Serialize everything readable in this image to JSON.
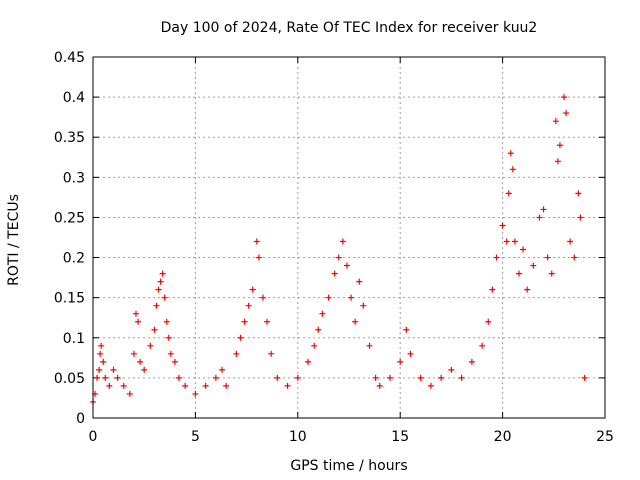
{
  "chart_data": {
    "type": "scatter",
    "title": "Day 100 of 2024, Rate Of TEC Index for receiver kuu2",
    "xlabel": "GPS time / hours",
    "ylabel": "ROTI / TECUs",
    "xlim": [
      0,
      25
    ],
    "ylim": [
      0,
      0.45
    ],
    "xticks": [
      "0",
      "5",
      "10",
      "15",
      "20",
      "25"
    ],
    "yticks": [
      "0",
      "0.05",
      "0.1",
      "0.15",
      "0.2",
      "0.25",
      "0.3",
      "0.35",
      "0.4",
      "0.45"
    ],
    "grid": true,
    "marker": "plus",
    "color": "#ff0000",
    "series": [
      {
        "points": [
          [
            0.0,
            0.02
          ],
          [
            0.1,
            0.03
          ],
          [
            0.2,
            0.05
          ],
          [
            0.3,
            0.06
          ],
          [
            0.35,
            0.08
          ],
          [
            0.4,
            0.09
          ],
          [
            0.5,
            0.07
          ],
          [
            0.6,
            0.05
          ],
          [
            0.8,
            0.04
          ],
          [
            1.0,
            0.06
          ],
          [
            1.2,
            0.05
          ],
          [
            1.5,
            0.04
          ],
          [
            1.8,
            0.03
          ],
          [
            2.0,
            0.08
          ],
          [
            2.1,
            0.13
          ],
          [
            2.2,
            0.12
          ],
          [
            2.3,
            0.07
          ],
          [
            2.5,
            0.06
          ],
          [
            2.8,
            0.09
          ],
          [
            3.0,
            0.11
          ],
          [
            3.1,
            0.14
          ],
          [
            3.2,
            0.16
          ],
          [
            3.3,
            0.17
          ],
          [
            3.4,
            0.18
          ],
          [
            3.5,
            0.15
          ],
          [
            3.6,
            0.12
          ],
          [
            3.7,
            0.1
          ],
          [
            3.8,
            0.08
          ],
          [
            4.0,
            0.07
          ],
          [
            4.2,
            0.05
          ],
          [
            4.5,
            0.04
          ],
          [
            5.0,
            0.03
          ],
          [
            5.5,
            0.04
          ],
          [
            6.0,
            0.05
          ],
          [
            6.3,
            0.06
          ],
          [
            6.5,
            0.04
          ],
          [
            7.0,
            0.08
          ],
          [
            7.2,
            0.1
          ],
          [
            7.4,
            0.12
          ],
          [
            7.6,
            0.14
          ],
          [
            7.8,
            0.16
          ],
          [
            8.0,
            0.22
          ],
          [
            8.1,
            0.2
          ],
          [
            8.3,
            0.15
          ],
          [
            8.5,
            0.12
          ],
          [
            8.7,
            0.08
          ],
          [
            9.0,
            0.05
          ],
          [
            9.5,
            0.04
          ],
          [
            10.0,
            0.05
          ],
          [
            10.5,
            0.07
          ],
          [
            10.8,
            0.09
          ],
          [
            11.0,
            0.11
          ],
          [
            11.2,
            0.13
          ],
          [
            11.5,
            0.15
          ],
          [
            11.8,
            0.18
          ],
          [
            12.0,
            0.2
          ],
          [
            12.2,
            0.22
          ],
          [
            12.4,
            0.19
          ],
          [
            12.6,
            0.15
          ],
          [
            12.8,
            0.12
          ],
          [
            13.0,
            0.17
          ],
          [
            13.2,
            0.14
          ],
          [
            13.5,
            0.09
          ],
          [
            13.8,
            0.05
          ],
          [
            14.0,
            0.04
          ],
          [
            14.5,
            0.05
          ],
          [
            15.0,
            0.07
          ],
          [
            15.3,
            0.11
          ],
          [
            15.5,
            0.08
          ],
          [
            16.0,
            0.05
          ],
          [
            16.5,
            0.04
          ],
          [
            17.0,
            0.05
          ],
          [
            17.5,
            0.06
          ],
          [
            18.0,
            0.05
          ],
          [
            18.5,
            0.07
          ],
          [
            19.0,
            0.09
          ],
          [
            19.3,
            0.12
          ],
          [
            19.5,
            0.16
          ],
          [
            19.7,
            0.2
          ],
          [
            20.0,
            0.24
          ],
          [
            20.2,
            0.22
          ],
          [
            20.3,
            0.28
          ],
          [
            20.4,
            0.33
          ],
          [
            20.5,
            0.31
          ],
          [
            20.6,
            0.22
          ],
          [
            20.8,
            0.18
          ],
          [
            21.0,
            0.21
          ],
          [
            21.2,
            0.16
          ],
          [
            21.5,
            0.19
          ],
          [
            21.8,
            0.25
          ],
          [
            22.0,
            0.26
          ],
          [
            22.2,
            0.2
          ],
          [
            22.4,
            0.18
          ],
          [
            22.6,
            0.37
          ],
          [
            22.7,
            0.32
          ],
          [
            22.8,
            0.34
          ],
          [
            23.0,
            0.4
          ],
          [
            23.1,
            0.38
          ],
          [
            23.3,
            0.22
          ],
          [
            23.5,
            0.2
          ],
          [
            23.7,
            0.28
          ],
          [
            23.8,
            0.25
          ],
          [
            24.0,
            0.05
          ]
        ]
      }
    ]
  }
}
